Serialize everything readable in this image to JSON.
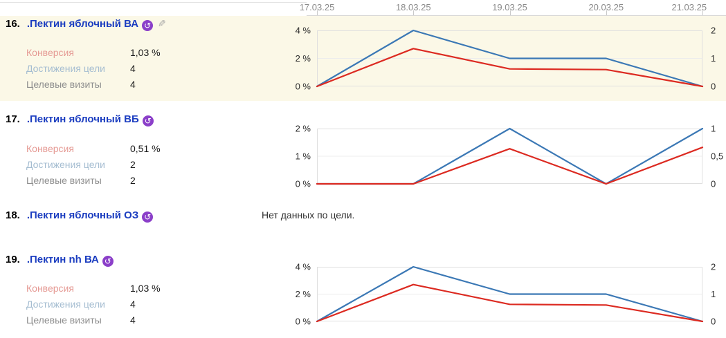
{
  "colors": {
    "blue": "#3b78b5",
    "red": "#dc2a21",
    "plot_border": "#dfdfdf",
    "gridline": "#ececec",
    "axis_text": "#2b2b2b",
    "date_text": "#8a8a8a",
    "row_highlight": "#fbf8e7",
    "title_link": "#1b3dc0",
    "badge_purple": "#8b3fc9"
  },
  "date_axis": {
    "labels": [
      "17.03.25",
      "18.03.25",
      "19.03.25",
      "20.03.25",
      "21.03.25"
    ]
  },
  "metric_labels": {
    "conversion": "Конверсия",
    "goal_achievements": "Достижения цели",
    "goal_visits": "Целевые визиты"
  },
  "icons": {
    "retargeting_glyph": "↺",
    "edit_glyph": "✎"
  },
  "rows": [
    {
      "num": "16.",
      "title": ".Пектин яблочный ВА",
      "conversion": "1,03 %",
      "goal_achievements": "4",
      "goal_visits": "4"
    },
    {
      "num": "17.",
      "title": ".Пектин яблочный ВБ",
      "conversion": "0,51 %",
      "goal_achievements": "2",
      "goal_visits": "2"
    },
    {
      "num": "18.",
      "title": ".Пектин яблочный ОЗ",
      "no_data": "Нет данных по цели."
    },
    {
      "num": "19.",
      "title": ".Пектин nh ВА",
      "conversion": "1,03 %",
      "goal_achievements": "4",
      "goal_visits": "4"
    }
  ],
  "charts": [
    {
      "type": "line",
      "goal": ".Пектин яблочный ВА",
      "x": [
        "17.03.25",
        "18.03.25",
        "19.03.25",
        "20.03.25",
        "21.03.25"
      ],
      "left_ticks": [
        "4 %",
        "2 %",
        "0 %"
      ],
      "right_ticks": [
        "2",
        "1",
        "0"
      ],
      "series": [
        {
          "name": "Достижения цели",
          "color_key": "blue",
          "axis": "right",
          "max": 2,
          "values": [
            0,
            2,
            1,
            1,
            0
          ]
        },
        {
          "name": "Конверсия",
          "color_key": "red",
          "axis": "left",
          "max": 4,
          "values": [
            0,
            2.7,
            1.25,
            1.2,
            0
          ]
        }
      ]
    },
    {
      "type": "line",
      "goal": ".Пектин яблочный ВБ",
      "x": [
        "17.03.25",
        "18.03.25",
        "19.03.25",
        "20.03.25",
        "21.03.25"
      ],
      "left_ticks": [
        "2 %",
        "1 %",
        "0 %"
      ],
      "right_ticks": [
        "1",
        "0,5",
        "0"
      ],
      "series": [
        {
          "name": "Достижения цели",
          "color_key": "blue",
          "axis": "right",
          "max": 1,
          "values": [
            0,
            0,
            1,
            0,
            1
          ]
        },
        {
          "name": "Конверсия",
          "color_key": "red",
          "axis": "left",
          "max": 2,
          "values": [
            0,
            0,
            1.27,
            0,
            1.32
          ]
        }
      ]
    },
    {
      "type": "line",
      "goal": ".Пектин nh ВА",
      "x": [
        "17.03.25",
        "18.03.25",
        "19.03.25",
        "20.03.25",
        "21.03.25"
      ],
      "left_ticks": [
        "4 %",
        "2 %",
        "0 %"
      ],
      "right_ticks": [
        "2",
        "1",
        "0"
      ],
      "series": [
        {
          "name": "Достижения цели",
          "color_key": "blue",
          "axis": "right",
          "max": 2,
          "values": [
            0,
            2,
            1,
            1,
            0
          ]
        },
        {
          "name": "Конверсия",
          "color_key": "red",
          "axis": "left",
          "max": 4,
          "values": [
            0,
            2.7,
            1.25,
            1.2,
            0
          ]
        }
      ]
    }
  ]
}
